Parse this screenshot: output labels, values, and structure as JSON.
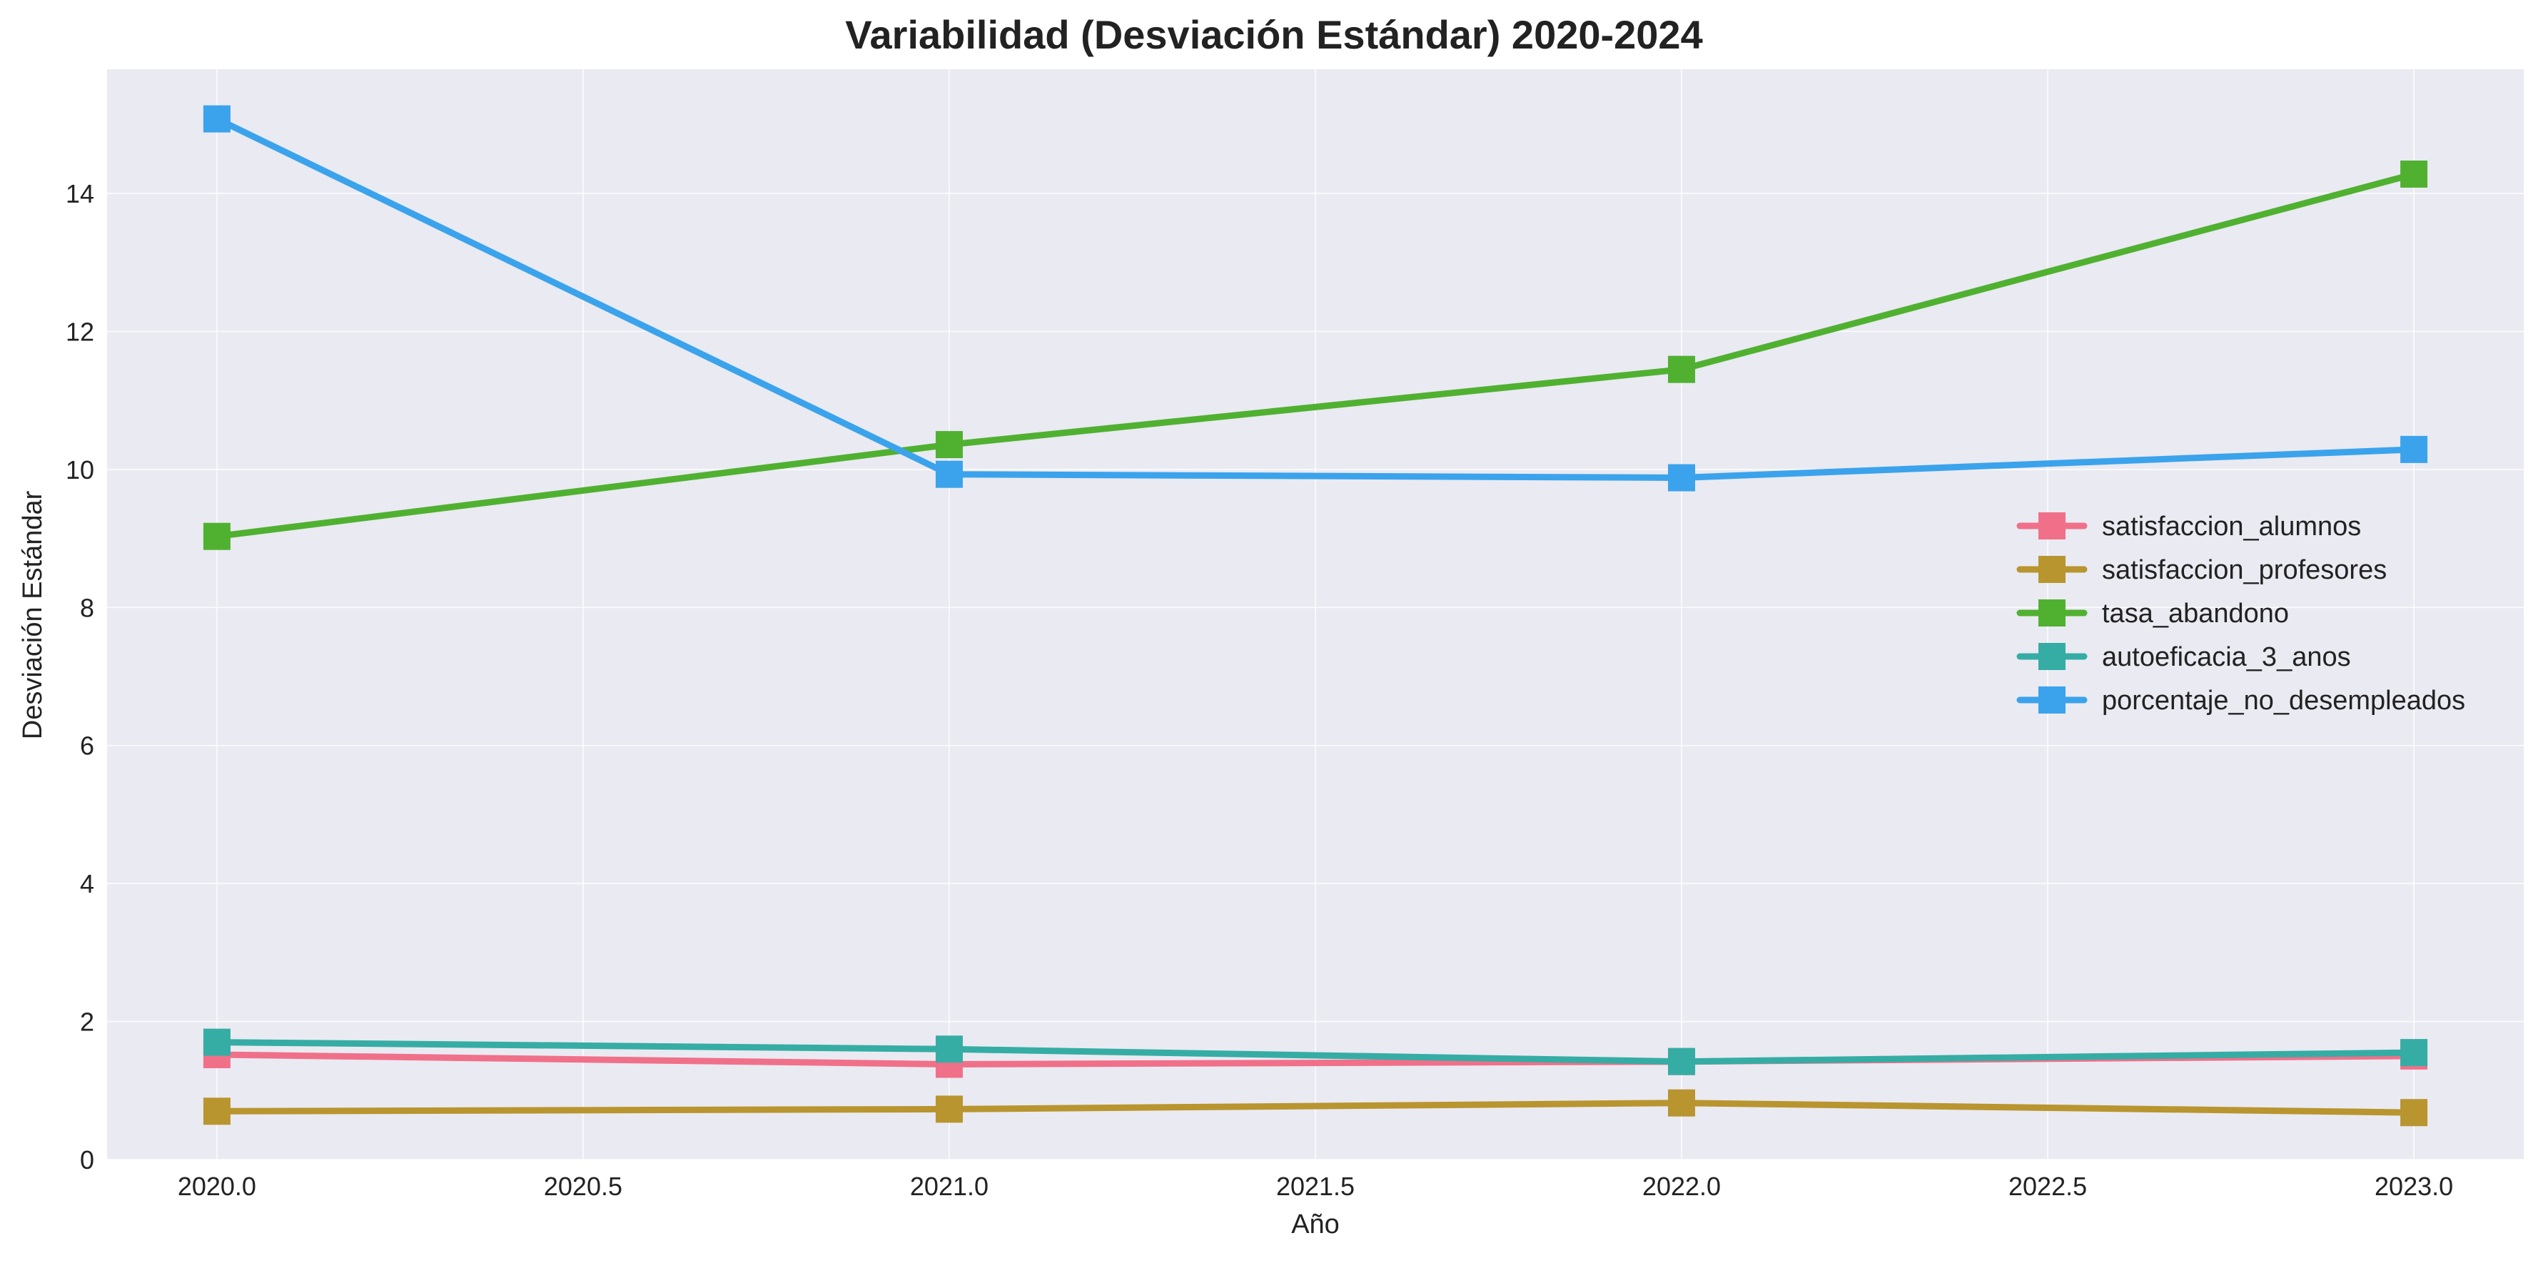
{
  "chart_data": {
    "type": "line",
    "title": "Variabilidad (Desviación Estándar) 2020-2024",
    "xlabel": "Año",
    "ylabel": "Desviación Estándar",
    "x": [
      2020.0,
      2021.0,
      2022.0,
      2023.0
    ],
    "xlim": [
      2019.85,
      2023.15
    ],
    "ylim": [
      0,
      15.8
    ],
    "xticks": [
      2020.0,
      2020.5,
      2021.0,
      2021.5,
      2022.0,
      2022.5,
      2023.0
    ],
    "xtick_labels": [
      "2020.0",
      "2020.5",
      "2021.0",
      "2021.5",
      "2022.0",
      "2022.5",
      "2023.0"
    ],
    "yticks": [
      0,
      2,
      4,
      6,
      8,
      10,
      12,
      14
    ],
    "ytick_labels": [
      "0",
      "2",
      "4",
      "6",
      "8",
      "10",
      "12",
      "14"
    ],
    "grid": true,
    "legend_position": "center-right",
    "plot_background": "#eaeaf2",
    "series": [
      {
        "name": "satisfaccion_alumnos",
        "color": "#f0708a",
        "marker": "square",
        "values": [
          1.52,
          1.38,
          1.42,
          1.5
        ]
      },
      {
        "name": "satisfaccion_profesores",
        "color": "#b8952f",
        "marker": "square",
        "values": [
          0.7,
          0.73,
          0.82,
          0.68
        ]
      },
      {
        "name": "tasa_abandono",
        "color": "#50b131",
        "marker": "square",
        "values": [
          9.03,
          10.36,
          11.45,
          14.28
        ]
      },
      {
        "name": "autoeficacia_3_anos",
        "color": "#36ada4",
        "marker": "square",
        "values": [
          1.7,
          1.6,
          1.42,
          1.55
        ]
      },
      {
        "name": "porcentaje_no_desempleados",
        "color": "#3ba3ec",
        "marker": "square",
        "values": [
          15.08,
          9.93,
          9.88,
          10.29
        ]
      }
    ]
  }
}
